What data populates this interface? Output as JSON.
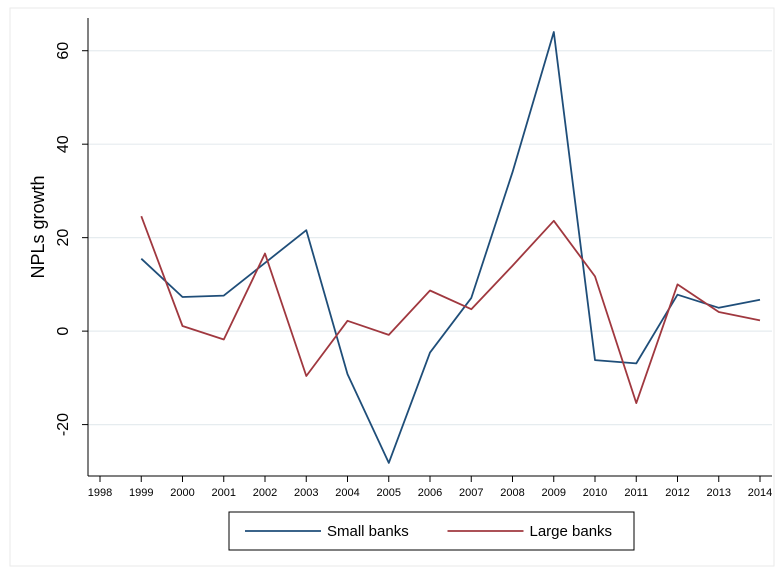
{
  "chart_data": {
    "type": "line",
    "ylabel": "NPLs growth",
    "xlabel": "",
    "x": [
      "1998",
      "1999",
      "2000",
      "2001",
      "2002",
      "2003",
      "2004",
      "2005",
      "2006",
      "2007",
      "2008",
      "2009",
      "2010",
      "2011",
      "2012",
      "2013",
      "2014"
    ],
    "xlim": [
      1998,
      2014
    ],
    "ylim": [
      -31,
      67
    ],
    "yticks": [
      -20,
      0,
      20,
      40,
      60
    ],
    "grid": true,
    "legend_position": "bottom",
    "series": [
      {
        "name": "Small banks",
        "color": "#1f4e79",
        "values": [
          null,
          15.5,
          7.3,
          7.6,
          14.6,
          21.6,
          -9.2,
          -28.2,
          -4.6,
          7.1,
          34.0,
          64.0,
          -6.2,
          -6.9,
          7.8,
          5.0,
          6.7
        ]
      },
      {
        "name": "Large banks",
        "color": "#a0383f",
        "values": [
          null,
          24.6,
          1.1,
          -1.8,
          16.6,
          -9.6,
          2.2,
          -0.8,
          8.7,
          4.7,
          14.0,
          23.6,
          11.7,
          -15.4,
          10.0,
          4.1,
          2.3
        ]
      }
    ]
  }
}
